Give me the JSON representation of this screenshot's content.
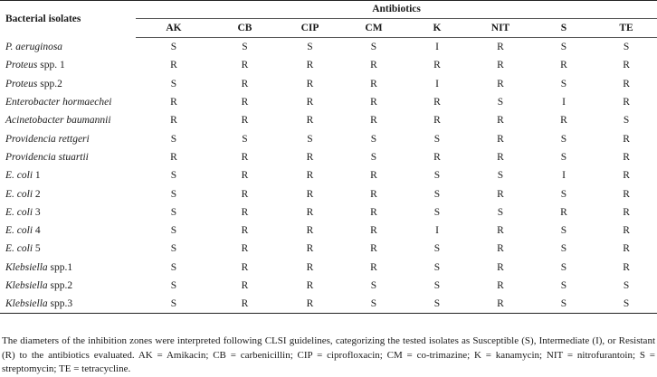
{
  "table": {
    "isolate_header": "Bacterial isolates",
    "group_header": "Antibiotics",
    "columns": [
      "AK",
      "CB",
      "CIP",
      "CM",
      "K",
      "NIT",
      "S",
      "TE"
    ],
    "rows": [
      {
        "name": "P. aeruginosa",
        "suffix": "",
        "values": [
          "S",
          "S",
          "S",
          "S",
          "I",
          "R",
          "S",
          "S"
        ]
      },
      {
        "name": "Proteus",
        "suffix": " spp. 1",
        "values": [
          "R",
          "R",
          "R",
          "R",
          "R",
          "R",
          "R",
          "R"
        ]
      },
      {
        "name": "Proteus",
        "suffix": " spp.2",
        "values": [
          "S",
          "R",
          "R",
          "R",
          "I",
          "R",
          "S",
          "R"
        ]
      },
      {
        "name": "Enterobacter hormaechei",
        "suffix": "",
        "values": [
          "R",
          "R",
          "R",
          "R",
          "R",
          "S",
          "I",
          "R"
        ]
      },
      {
        "name": "Acinetobacter baumannii",
        "suffix": "",
        "values": [
          "R",
          "R",
          "R",
          "R",
          "R",
          "R",
          "R",
          "S"
        ]
      },
      {
        "name": "Providencia rettgeri",
        "suffix": "",
        "values": [
          "S",
          "S",
          "S",
          "S",
          "S",
          "R",
          "S",
          "R"
        ]
      },
      {
        "name": "Providencia stuartii",
        "suffix": "",
        "values": [
          "R",
          "R",
          "R",
          "S",
          "R",
          "R",
          "S",
          "R"
        ]
      },
      {
        "name": "E. coli",
        "suffix": " 1",
        "values": [
          "S",
          "R",
          "R",
          "R",
          "S",
          "S",
          "I",
          "R"
        ]
      },
      {
        "name": "E. coli",
        "suffix": " 2",
        "values": [
          "S",
          "R",
          "R",
          "R",
          "S",
          "R",
          "S",
          "R"
        ]
      },
      {
        "name": "E. coli",
        "suffix": " 3",
        "values": [
          "S",
          "R",
          "R",
          "R",
          "S",
          "S",
          "R",
          "R"
        ]
      },
      {
        "name": "E. coli",
        "suffix": " 4",
        "values": [
          "S",
          "R",
          "R",
          "R",
          "I",
          "R",
          "S",
          "R"
        ]
      },
      {
        "name": "E. coli",
        "suffix": " 5",
        "values": [
          "S",
          "R",
          "R",
          "R",
          "S",
          "R",
          "S",
          "R"
        ]
      },
      {
        "name": "Klebsiella",
        "suffix": " spp.1",
        "values": [
          "S",
          "R",
          "R",
          "R",
          "S",
          "R",
          "S",
          "R"
        ]
      },
      {
        "name": "Klebsiella",
        "suffix": " spp.2",
        "values": [
          "S",
          "R",
          "R",
          "S",
          "S",
          "R",
          "S",
          "S"
        ]
      },
      {
        "name": "Klebsiella",
        "suffix": " spp.3",
        "values": [
          "S",
          "R",
          "R",
          "S",
          "S",
          "R",
          "S",
          "S"
        ]
      }
    ]
  },
  "footnote": "The diameters of the inhibition zones were interpreted following CLSI guidelines, categorizing the tested isolates as Susceptible (S), Intermediate (I), or Resistant (R) to the antibiotics evaluated. AK = Amikacin; CB = carbenicillin; CIP = ciprofloxacin; CM = co-trimazine; K = kanamycin; NIT = nitrofurantoin; S = streptomycin; TE = tetracycline."
}
